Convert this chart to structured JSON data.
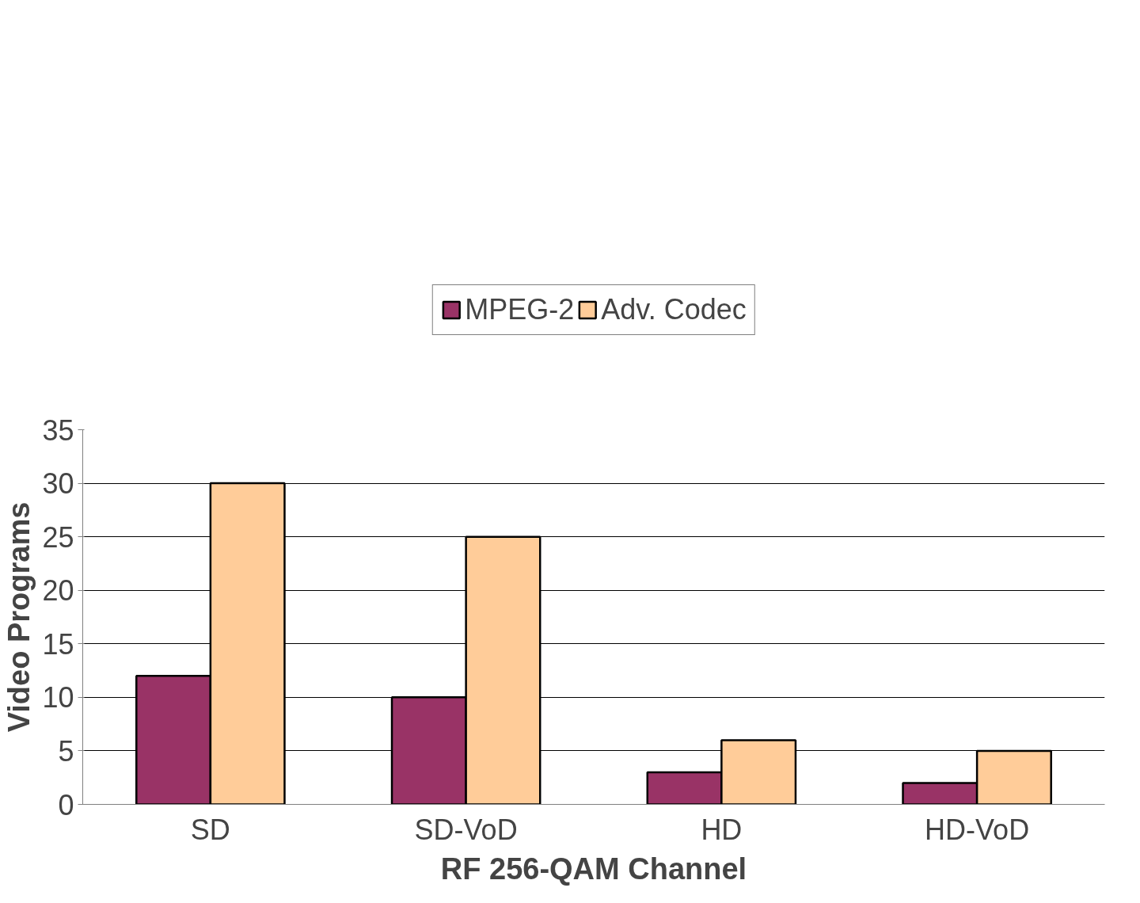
{
  "chart_data": {
    "type": "bar",
    "xlabel": "RF 256-QAM Channel",
    "ylabel": "Video Programs",
    "categories": [
      "SD",
      "SD-VoD",
      "HD",
      "HD-VoD"
    ],
    "series": [
      {
        "name": "MPEG-2",
        "color": "#993366",
        "values": [
          12,
          10,
          3,
          2
        ]
      },
      {
        "name": "Adv. Codec",
        "color": "#ffcc99",
        "values": [
          30,
          25,
          6,
          5
        ]
      }
    ],
    "ylim": [
      0,
      35
    ],
    "yticks": [
      0,
      5,
      10,
      15,
      20,
      25,
      30,
      35
    ],
    "grid": "y",
    "legend": "top"
  }
}
